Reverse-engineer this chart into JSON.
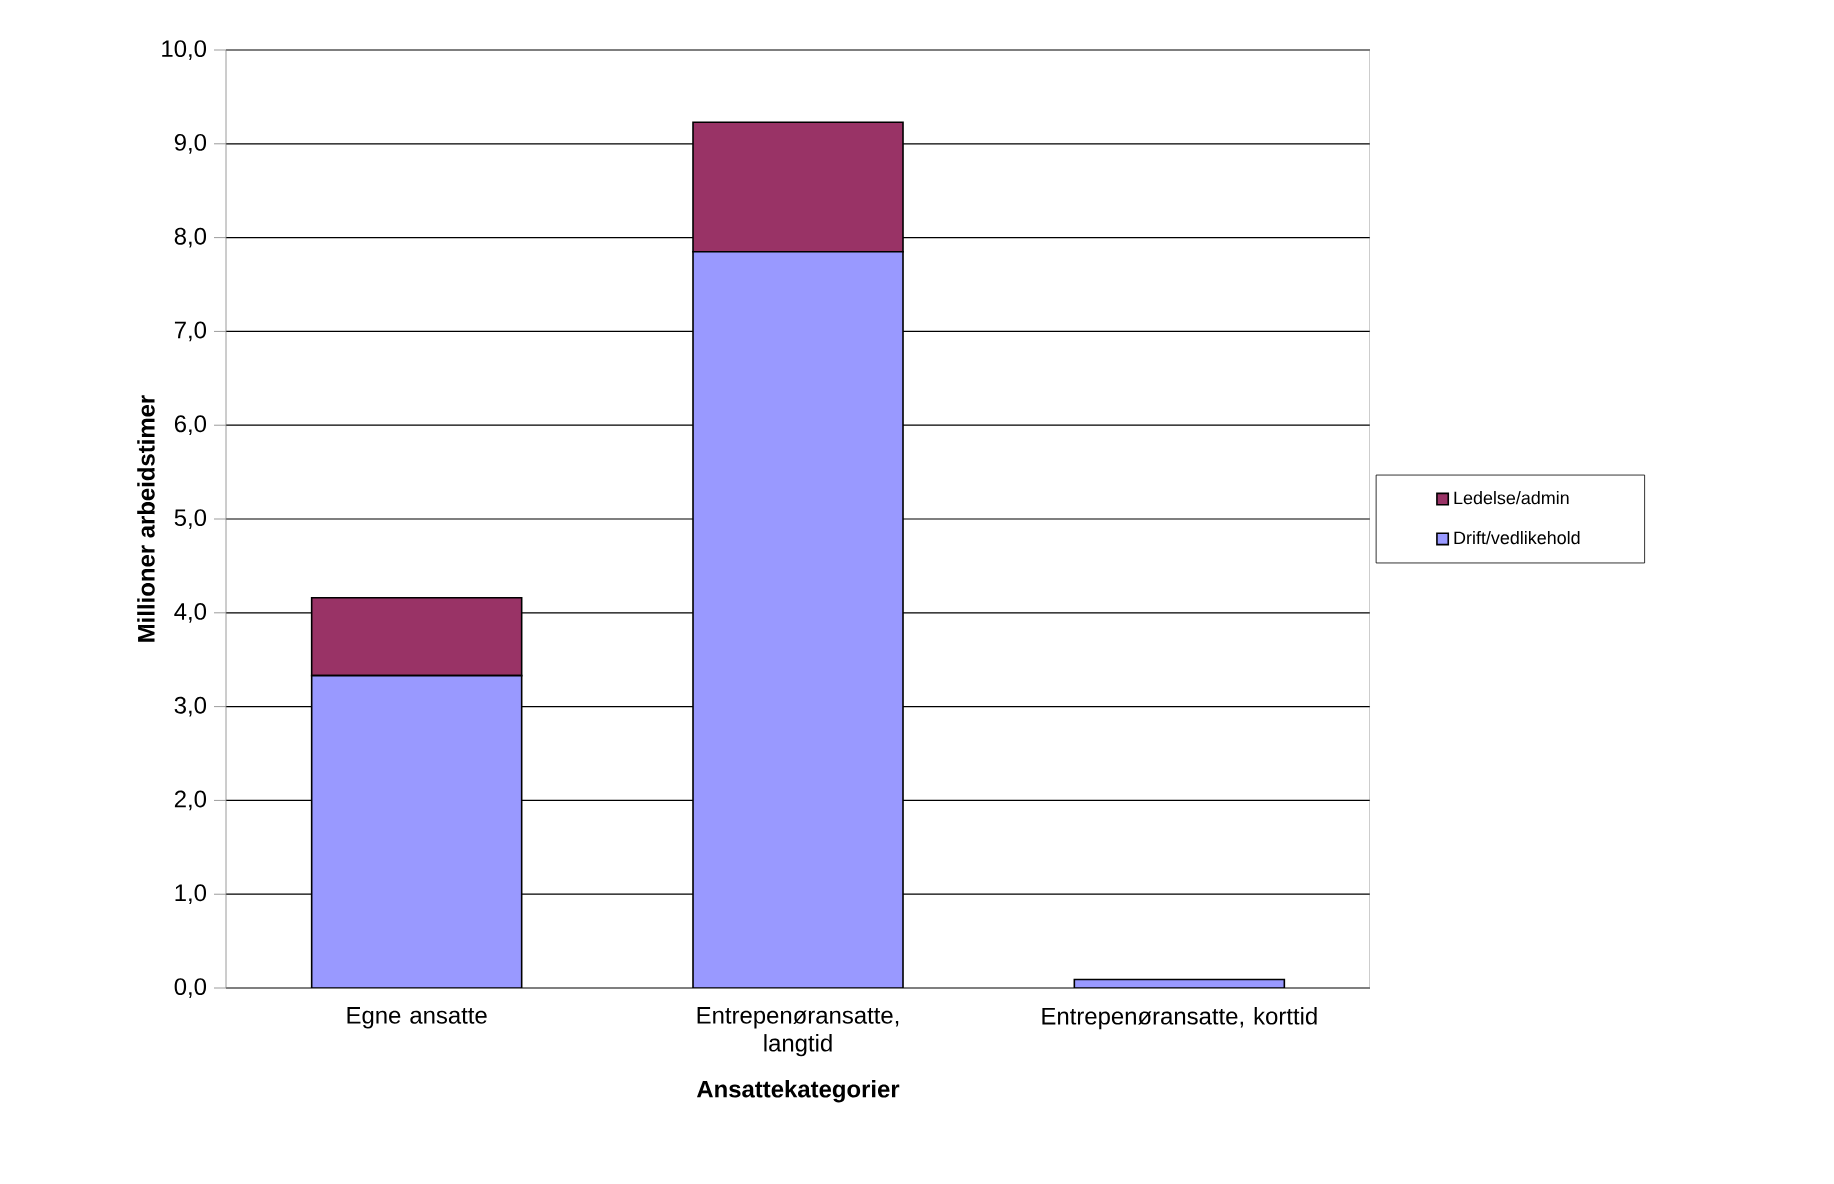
{
  "chart_data": {
    "type": "bar",
    "stacked": true,
    "xlabel": "Ansattekategorier",
    "ylabel": "Millioner arbeidstimer",
    "categories": [
      "Egne ansatte",
      "Entrepenøransatte, langtid",
      "Entrepenøransatte, korttid"
    ],
    "series": [
      {
        "name": "Drift/vedlikehold",
        "color": "#9999ff",
        "values": [
          3.33,
          7.85,
          0.09
        ]
      },
      {
        "name": "Ledelse/admin",
        "color": "#993366",
        "values": [
          0.83,
          1.38,
          0
        ]
      }
    ],
    "ylim": [
      0,
      10
    ],
    "yticks": [
      {
        "value": 0,
        "label": "0,0"
      },
      {
        "value": 1,
        "label": "1,0"
      },
      {
        "value": 2,
        "label": "2,0"
      },
      {
        "value": 3,
        "label": "3,0"
      },
      {
        "value": 4,
        "label": "4,0"
      },
      {
        "value": 5,
        "label": "5,0"
      },
      {
        "value": 6,
        "label": "6,0"
      },
      {
        "value": 7,
        "label": "7,0"
      },
      {
        "value": 8,
        "label": "8,0"
      },
      {
        "value": 9,
        "label": "9,0"
      },
      {
        "value": 10,
        "label": "10,0"
      }
    ],
    "grid": "y",
    "legend": "right"
  }
}
